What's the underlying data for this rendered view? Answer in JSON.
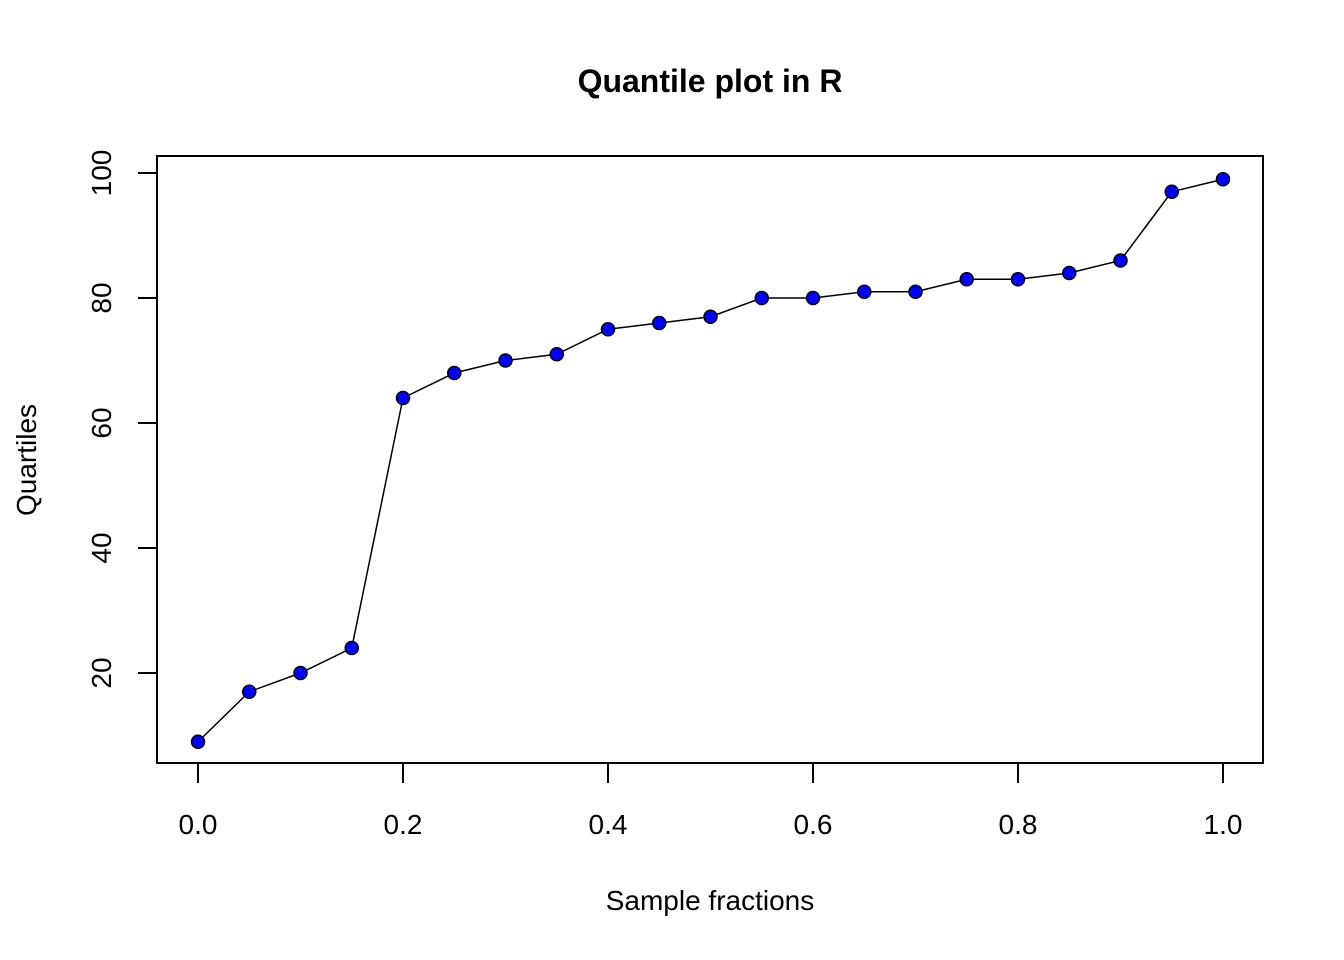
{
  "chart_data": {
    "type": "line",
    "title": "Quantile plot in R",
    "xlabel": "Sample fractions",
    "ylabel": "Quartiles",
    "x": [
      0.0,
      0.05,
      0.1,
      0.15,
      0.2,
      0.25,
      0.3,
      0.35,
      0.4,
      0.45,
      0.5,
      0.55,
      0.6,
      0.65,
      0.7,
      0.75,
      0.8,
      0.85,
      0.9,
      0.95,
      1.0
    ],
    "y": [
      9,
      17,
      20,
      24,
      64,
      68,
      70,
      71,
      75,
      76,
      77,
      80,
      80,
      81,
      81,
      83,
      83,
      84,
      86,
      97,
      99
    ],
    "xticks": [
      0.0,
      0.2,
      0.4,
      0.6,
      0.8,
      1.0
    ],
    "xtick_labels": [
      "0.0",
      "0.2",
      "0.4",
      "0.6",
      "0.8",
      "1.0"
    ],
    "yticks": [
      20,
      40,
      60,
      80,
      100
    ],
    "ytick_labels": [
      "20",
      "40",
      "60",
      "80",
      "100"
    ],
    "xlim": [
      -0.04,
      1.04
    ],
    "ylim": [
      6.4,
      101.6
    ],
    "grid": false,
    "legend": null,
    "marker": {
      "shape": "circle",
      "fill": "#0000ff",
      "stroke": "#000000"
    },
    "line_color": "#000000"
  }
}
